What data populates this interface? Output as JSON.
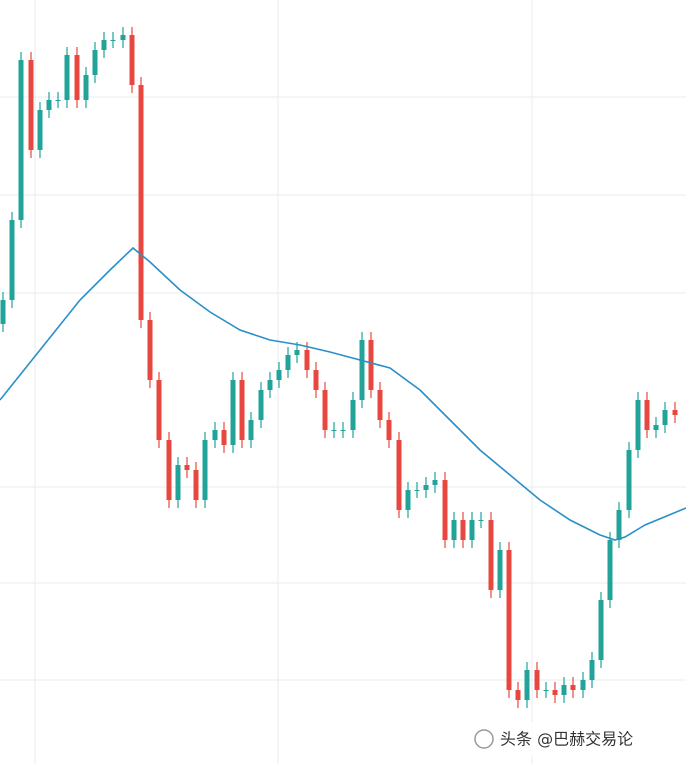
{
  "chart_data": {
    "type": "candlestick",
    "xlim": [
      0,
      686
    ],
    "ylim": [
      0,
      764
    ],
    "xticks": [
      35,
      278,
      532
    ],
    "yticks": [
      84,
      181,
      277,
      471,
      569,
      667
    ],
    "grid": true,
    "up_color": "#22a39a",
    "down_color": "#e8473f",
    "x": [
      3,
      12,
      21,
      31,
      40,
      49,
      58,
      67,
      77,
      86,
      95,
      104,
      113,
      123,
      132,
      141,
      150,
      159,
      169,
      178,
      187,
      196,
      205,
      215,
      224,
      233,
      242,
      251,
      261,
      270,
      279,
      288,
      297,
      307,
      316,
      325,
      334,
      343,
      353,
      362,
      371,
      380,
      389,
      399,
      408,
      417,
      426,
      435,
      445,
      454,
      463,
      472,
      481,
      491,
      500,
      509,
      518,
      527,
      537,
      546,
      555,
      564,
      573,
      583,
      592,
      601,
      610,
      619,
      629,
      638,
      647,
      656,
      665,
      675
    ],
    "open": [
      440,
      464,
      544,
      704,
      614,
      654,
      664,
      664,
      709,
      664,
      689,
      714,
      724,
      724,
      729,
      679,
      444,
      384,
      324,
      264,
      299,
      294,
      264,
      324,
      334,
      319,
      384,
      324,
      344,
      374,
      384,
      394,
      409,
      414,
      394,
      374,
      334,
      334,
      334,
      364,
      424,
      374,
      344,
      324,
      254,
      274,
      274,
      279,
      284,
      224,
      244,
      224,
      244,
      244,
      174,
      214,
      74,
      64,
      94,
      74,
      74,
      69,
      79,
      74,
      84,
      104,
      164,
      224,
      254,
      314,
      364,
      334,
      339,
      354
    ],
    "high": [
      472,
      552,
      712,
      712,
      662,
      672,
      672,
      717,
      717,
      697,
      722,
      732,
      732,
      737,
      737,
      687,
      452,
      392,
      332,
      307,
      307,
      302,
      332,
      342,
      342,
      392,
      392,
      352,
      382,
      392,
      402,
      417,
      422,
      422,
      402,
      382,
      342,
      342,
      372,
      432,
      432,
      382,
      352,
      332,
      282,
      282,
      287,
      292,
      292,
      252,
      252,
      252,
      252,
      252,
      222,
      222,
      82,
      102,
      102,
      82,
      82,
      87,
      87,
      92,
      112,
      172,
      232,
      262,
      322,
      372,
      372,
      347,
      362,
      362
    ],
    "low": [
      432,
      456,
      536,
      606,
      606,
      646,
      656,
      656,
      656,
      656,
      681,
      706,
      716,
      716,
      671,
      436,
      376,
      316,
      256,
      256,
      286,
      256,
      256,
      316,
      311,
      311,
      316,
      316,
      336,
      366,
      376,
      386,
      401,
      386,
      366,
      326,
      326,
      326,
      326,
      356,
      366,
      336,
      316,
      246,
      246,
      266,
      266,
      271,
      216,
      216,
      216,
      216,
      236,
      166,
      166,
      66,
      56,
      56,
      66,
      66,
      61,
      61,
      66,
      66,
      76,
      96,
      156,
      216,
      246,
      306,
      326,
      326,
      331,
      341
    ],
    "close": [
      464,
      544,
      704,
      614,
      654,
      664,
      664,
      709,
      664,
      689,
      714,
      724,
      724,
      729,
      679,
      444,
      384,
      324,
      264,
      299,
      294,
      264,
      324,
      334,
      319,
      384,
      324,
      344,
      374,
      384,
      394,
      409,
      414,
      394,
      374,
      334,
      334,
      334,
      364,
      424,
      374,
      344,
      324,
      254,
      274,
      274,
      279,
      284,
      224,
      244,
      224,
      244,
      244,
      174,
      214,
      74,
      64,
      94,
      74,
      74,
      69,
      79,
      74,
      84,
      104,
      164,
      224,
      254,
      314,
      364,
      334,
      339,
      354,
      349
    ],
    "ma": {
      "color": "#2b8fc7",
      "x": [
        0,
        40,
        80,
        110,
        133,
        150,
        180,
        210,
        240,
        270,
        300,
        330,
        360,
        390,
        420,
        450,
        480,
        510,
        540,
        570,
        600,
        615,
        625,
        645,
        686
      ],
      "values": [
        364,
        414,
        464,
        494,
        516,
        502,
        474,
        452,
        434,
        424,
        419,
        412,
        404,
        396,
        374,
        344,
        314,
        289,
        264,
        244,
        229,
        224,
        227,
        239,
        256
      ]
    },
    "watermark": "头条 @巴赫交易论"
  }
}
